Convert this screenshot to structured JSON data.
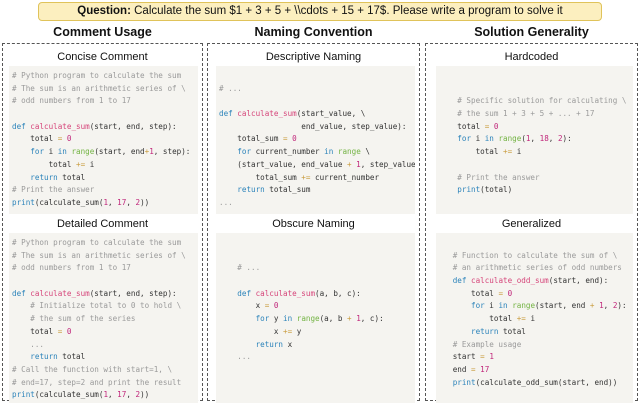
{
  "question": {
    "label": "Question:",
    "text": " Calculate the sum $1 + 3 + 5 + \\\\cdots + 15 + 17$. Please write a program to solve it"
  },
  "columns": [
    {
      "title": "Comment Usage",
      "panels": [
        {
          "title": "Concise Comment",
          "lines": [
            [
              [
                "c",
                "# Python program to calculate the sum"
              ]
            ],
            [
              [
                "c",
                "# The sum is an arithmetic series of \\"
              ]
            ],
            [
              [
                "c",
                "# odd numbers from 1 to 17"
              ]
            ],
            [],
            [
              [
                "k",
                "def "
              ],
              [
                "f",
                "calculate_sum"
              ],
              [
                "p",
                "(start, end, step):"
              ]
            ],
            [
              [
                "p",
                "    total "
              ],
              [
                "o",
                "="
              ],
              [
                "p",
                " "
              ],
              [
                "n",
                "0"
              ]
            ],
            [
              [
                "p",
                "    "
              ],
              [
                "k",
                "for"
              ],
              [
                "p",
                " i "
              ],
              [
                "k",
                "in"
              ],
              [
                "p",
                " "
              ],
              [
                "b",
                "range"
              ],
              [
                "p",
                "(start, end"
              ],
              [
                "o",
                "+"
              ],
              [
                "n",
                "1"
              ],
              [
                "p",
                ", step):"
              ]
            ],
            [
              [
                "p",
                "        total "
              ],
              [
                "o",
                "+="
              ],
              [
                "p",
                " i"
              ]
            ],
            [
              [
                "p",
                "    "
              ],
              [
                "k",
                "return"
              ],
              [
                "p",
                " total"
              ]
            ],
            [
              [
                "c",
                "# Print the answer"
              ]
            ],
            [
              [
                "k",
                "print"
              ],
              [
                "p",
                "(calculate_sum("
              ],
              [
                "n",
                "1"
              ],
              [
                "p",
                ", "
              ],
              [
                "n",
                "17"
              ],
              [
                "p",
                ", "
              ],
              [
                "n",
                "2"
              ],
              [
                "p",
                "))"
              ]
            ]
          ]
        },
        {
          "title": "Detailed Comment",
          "lines": [
            [
              [
                "c",
                "# Python program to calculate the sum"
              ]
            ],
            [
              [
                "c",
                "# The sum is an arithmetic series of \\"
              ]
            ],
            [
              [
                "c",
                "# odd numbers from 1 to 17"
              ]
            ],
            [],
            [
              [
                "k",
                "def "
              ],
              [
                "f",
                "calculate_sum"
              ],
              [
                "p",
                "(start, end, step):"
              ]
            ],
            [
              [
                "c",
                "    # Initialize total to 0 to hold \\"
              ]
            ],
            [
              [
                "c",
                "    # the sum of the series"
              ]
            ],
            [
              [
                "p",
                "    total "
              ],
              [
                "o",
                "="
              ],
              [
                "p",
                " "
              ],
              [
                "n",
                "0"
              ]
            ],
            [
              [
                "c",
                "    ..."
              ]
            ],
            [
              [
                "p",
                "    "
              ],
              [
                "k",
                "return"
              ],
              [
                "p",
                " total"
              ]
            ],
            [
              [
                "c",
                "# Call the function with start=1, \\"
              ]
            ],
            [
              [
                "c",
                "# end=17, step=2 and print the result"
              ]
            ],
            [
              [
                "k",
                "print"
              ],
              [
                "p",
                "(calculate_sum("
              ],
              [
                "n",
                "1"
              ],
              [
                "p",
                ", "
              ],
              [
                "n",
                "17"
              ],
              [
                "p",
                ", "
              ],
              [
                "n",
                "2"
              ],
              [
                "p",
                "))"
              ]
            ]
          ]
        }
      ]
    },
    {
      "title": "Naming Convention",
      "panels": [
        {
          "title": "Descriptive Naming",
          "lines": [
            [],
            [
              [
                "c",
                "# ..."
              ]
            ],
            [],
            [
              [
                "k",
                "def "
              ],
              [
                "f",
                "calculate_sum"
              ],
              [
                "p",
                "(start_value, \\"
              ]
            ],
            [
              [
                "p",
                "                  end_value, step_value):"
              ]
            ],
            [
              [
                "p",
                "    total_sum "
              ],
              [
                "o",
                "="
              ],
              [
                "p",
                " "
              ],
              [
                "n",
                "0"
              ]
            ],
            [
              [
                "p",
                "    "
              ],
              [
                "k",
                "for"
              ],
              [
                "p",
                " current_number "
              ],
              [
                "k",
                "in"
              ],
              [
                "p",
                " "
              ],
              [
                "b",
                "range"
              ],
              [
                "p",
                " \\"
              ]
            ],
            [
              [
                "p",
                "    (start_value, end_value "
              ],
              [
                "o",
                "+"
              ],
              [
                "p",
                " "
              ],
              [
                "n",
                "1"
              ],
              [
                "p",
                ", step_value):"
              ]
            ],
            [
              [
                "p",
                "        total_sum "
              ],
              [
                "o",
                "+="
              ],
              [
                "p",
                " current_number"
              ]
            ],
            [
              [
                "p",
                "    "
              ],
              [
                "k",
                "return"
              ],
              [
                "p",
                " total_sum"
              ]
            ],
            [
              [
                "c",
                "..."
              ]
            ]
          ]
        },
        {
          "title": "Obscure Naming",
          "lines": [
            [],
            [],
            [
              [
                "c",
                "    # ..."
              ]
            ],
            [],
            [
              [
                "p",
                "    "
              ],
              [
                "k",
                "def "
              ],
              [
                "f",
                "calculate_sum"
              ],
              [
                "p",
                "(a, b, c):"
              ]
            ],
            [
              [
                "p",
                "        x "
              ],
              [
                "o",
                "="
              ],
              [
                "p",
                " "
              ],
              [
                "n",
                "0"
              ]
            ],
            [
              [
                "p",
                "        "
              ],
              [
                "k",
                "for"
              ],
              [
                "p",
                " y "
              ],
              [
                "k",
                "in"
              ],
              [
                "p",
                " "
              ],
              [
                "b",
                "range"
              ],
              [
                "p",
                "(a, b "
              ],
              [
                "o",
                "+"
              ],
              [
                "p",
                " "
              ],
              [
                "n",
                "1"
              ],
              [
                "p",
                ", c):"
              ]
            ],
            [
              [
                "p",
                "            x "
              ],
              [
                "o",
                "+="
              ],
              [
                "p",
                " y"
              ]
            ],
            [
              [
                "p",
                "        "
              ],
              [
                "k",
                "return"
              ],
              [
                "p",
                " x"
              ]
            ],
            [
              [
                "c",
                "    ..."
              ]
            ]
          ]
        }
      ]
    },
    {
      "title": "Solution Generality",
      "panels": [
        {
          "title": "Hardcoded",
          "lines": [
            [],
            [],
            [
              [
                "c",
                "    # Specific solution for calculating \\"
              ]
            ],
            [
              [
                "c",
                "    # the sum 1 + 3 + 5 + ... + 17"
              ]
            ],
            [
              [
                "p",
                "    total "
              ],
              [
                "o",
                "="
              ],
              [
                "p",
                " "
              ],
              [
                "n",
                "0"
              ]
            ],
            [
              [
                "p",
                "    "
              ],
              [
                "k",
                "for"
              ],
              [
                "p",
                " i "
              ],
              [
                "k",
                "in"
              ],
              [
                "p",
                " "
              ],
              [
                "b",
                "range"
              ],
              [
                "p",
                "("
              ],
              [
                "n",
                "1"
              ],
              [
                "p",
                ", "
              ],
              [
                "n",
                "18"
              ],
              [
                "p",
                ", "
              ],
              [
                "n",
                "2"
              ],
              [
                "p",
                "):"
              ]
            ],
            [
              [
                "p",
                "        total "
              ],
              [
                "o",
                "+="
              ],
              [
                "p",
                " i"
              ]
            ],
            [],
            [
              [
                "c",
                "    # Print the answer"
              ]
            ],
            [
              [
                "p",
                "    "
              ],
              [
                "k",
                "print"
              ],
              [
                "p",
                "(total)"
              ]
            ]
          ]
        },
        {
          "title": "Generalized",
          "lines": [
            [],
            [
              [
                "c",
                "   # Function to calculate the sum of \\"
              ]
            ],
            [
              [
                "c",
                "   # an arithmetic series of odd numbers"
              ]
            ],
            [
              [
                "p",
                "   "
              ],
              [
                "k",
                "def "
              ],
              [
                "f",
                "calculate_odd_sum"
              ],
              [
                "p",
                "(start, end):"
              ]
            ],
            [
              [
                "p",
                "       total "
              ],
              [
                "o",
                "="
              ],
              [
                "p",
                " "
              ],
              [
                "n",
                "0"
              ]
            ],
            [
              [
                "p",
                "       "
              ],
              [
                "k",
                "for"
              ],
              [
                "p",
                " i "
              ],
              [
                "k",
                "in"
              ],
              [
                "p",
                " "
              ],
              [
                "b",
                "range"
              ],
              [
                "p",
                "(start, end "
              ],
              [
                "o",
                "+"
              ],
              [
                "p",
                " "
              ],
              [
                "n",
                "1"
              ],
              [
                "p",
                ", "
              ],
              [
                "n",
                "2"
              ],
              [
                "p",
                "):"
              ]
            ],
            [
              [
                "p",
                "           total "
              ],
              [
                "o",
                "+="
              ],
              [
                "p",
                " i"
              ]
            ],
            [
              [
                "p",
                "       "
              ],
              [
                "k",
                "return"
              ],
              [
                "p",
                " total"
              ]
            ],
            [
              [
                "c",
                "   # Example usage"
              ]
            ],
            [
              [
                "p",
                "   start "
              ],
              [
                "o",
                "="
              ],
              [
                "p",
                " "
              ],
              [
                "n",
                "1"
              ]
            ],
            [
              [
                "p",
                "   end "
              ],
              [
                "o",
                "="
              ],
              [
                "p",
                " "
              ],
              [
                "n",
                "17"
              ]
            ],
            [
              [
                "p",
                "   "
              ],
              [
                "k",
                "print"
              ],
              [
                "p",
                "(calculate_odd_sum(start, end))"
              ]
            ]
          ]
        }
      ]
    }
  ],
  "colors": {
    "comment": "#9a9a9a",
    "keyword": "#2b83ba",
    "function": "#d6457a",
    "number": "#c0267a",
    "builtin": "#73b343",
    "operator": "#c99a3a",
    "banner_bg": "#fcefbf",
    "code_bg": "#f5f4f0"
  }
}
